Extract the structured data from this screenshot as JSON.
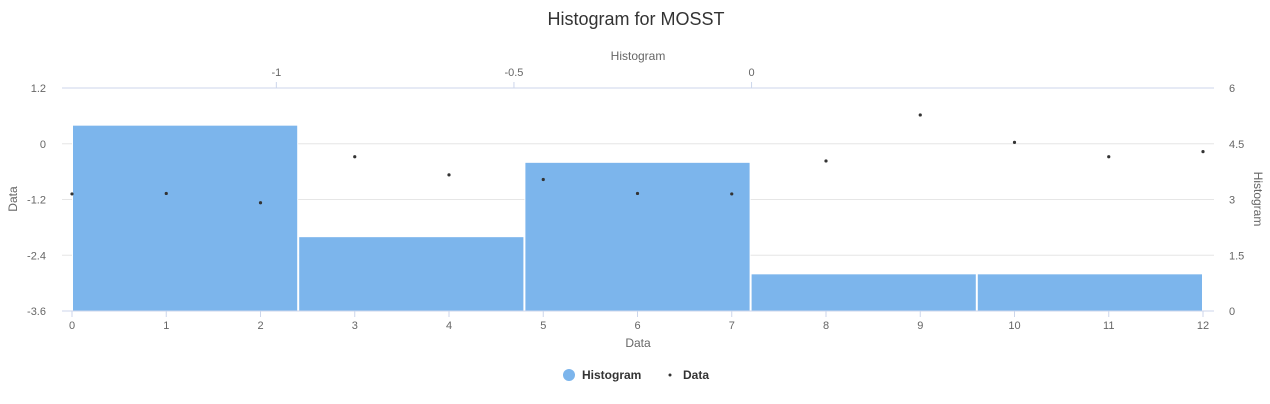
{
  "chart_data": {
    "type": "bar",
    "title": "Histogram for MOSST",
    "colors": {
      "histogram": "#7cb5ec",
      "data": "#333333"
    },
    "x_axis": {
      "title": "Data",
      "range": [
        0,
        12
      ],
      "ticks": [
        0,
        1,
        2,
        3,
        4,
        5,
        6,
        7,
        8,
        9,
        10,
        11,
        12
      ]
    },
    "x2_axis": {
      "title": "Histogram",
      "ticks": [
        {
          "label": "-1",
          "value": -1
        },
        {
          "label": "-0.5",
          "value": -0.5
        },
        {
          "label": "0",
          "value": 0
        }
      ],
      "value_at_x0": -1.43,
      "value_at_x12": 0.95
    },
    "y_axis": {
      "title": "Data",
      "range": [
        -3.6,
        1.2
      ],
      "ticks": [
        "-3.6",
        "-2.4",
        "-1.2",
        "0",
        "1.2"
      ]
    },
    "y2_axis": {
      "title": "Histogram",
      "range": [
        0,
        6
      ],
      "ticks": [
        "0",
        "1.5",
        "3",
        "4.5",
        "6"
      ]
    },
    "series": [
      {
        "name": "Histogram",
        "kind": "column",
        "axis": "secondary",
        "bins": [
          {
            "from": -1.43,
            "to": -0.954,
            "count": 5
          },
          {
            "from": -0.954,
            "to": -0.478,
            "count": 2
          },
          {
            "from": -0.478,
            "to": -0.002,
            "count": 4
          },
          {
            "from": -0.002,
            "to": 0.474,
            "count": 1
          },
          {
            "from": 0.474,
            "to": 0.95,
            "count": 1
          }
        ]
      },
      {
        "name": "Data",
        "kind": "scatter",
        "axis": "primary",
        "x": [
          0,
          1,
          2,
          3,
          4,
          5,
          6,
          7,
          8,
          9,
          10,
          11,
          12
        ],
        "y": [
          -1.08,
          -1.07,
          -1.27,
          -0.28,
          -0.67,
          -0.77,
          -1.07,
          -1.08,
          -0.37,
          0.62,
          0.03,
          -0.28,
          -0.17
        ]
      }
    ],
    "legend": {
      "position": "bottom-center",
      "items": [
        "Histogram",
        "Data"
      ]
    }
  }
}
